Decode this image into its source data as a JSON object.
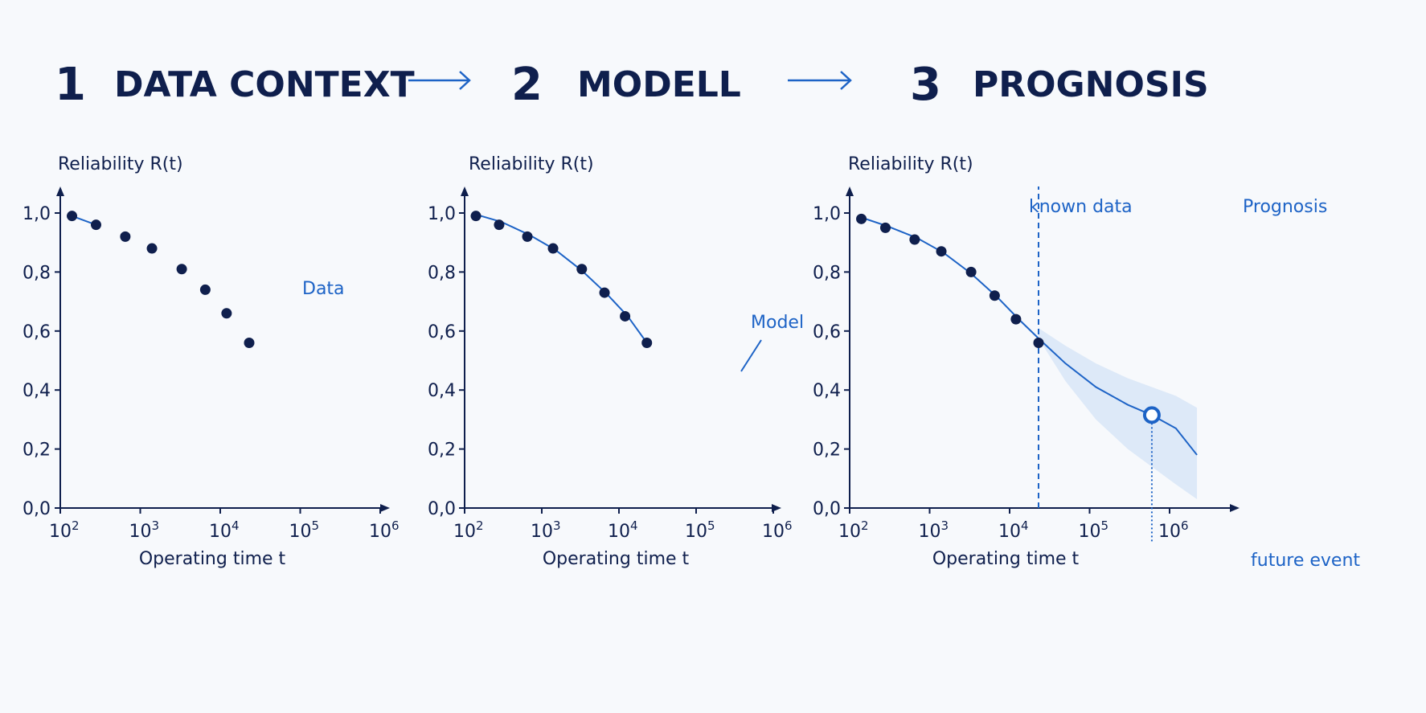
{
  "steps": [
    {
      "number": "1",
      "title": "DATA CONTEXT"
    },
    {
      "number": "2",
      "title": "MODELL"
    },
    {
      "number": "3",
      "title": "PROGNOSIS"
    }
  ],
  "colors": {
    "navy": "#0f1f4d",
    "accent_blue": "#1d63c6",
    "band_fill": "#d8e6f7",
    "background": "#f7f9fc"
  },
  "icons": {
    "step_arrow": "right-arrow-icon"
  },
  "chart_data": [
    {
      "type": "scatter",
      "title": "1 DATA CONTEXT",
      "ylabel": "Reliability R(t)",
      "xlabel": "Operating time t",
      "x_scale": "log",
      "xlim": [
        100,
        1000000
      ],
      "ylim": [
        0,
        1
      ],
      "y_ticks": [
        "0,0",
        "0,2",
        "0,4",
        "0,6",
        "0,8",
        "1,0"
      ],
      "x_ticks": [
        {
          "base": "10",
          "exp": "2"
        },
        {
          "base": "10",
          "exp": "3"
        },
        {
          "base": "10",
          "exp": "4"
        },
        {
          "base": "10",
          "exp": "5"
        },
        {
          "base": "10",
          "exp": "6"
        }
      ],
      "series": [
        {
          "name": "Data",
          "x": [
            140,
            280,
            650,
            1400,
            3300,
            6500,
            12000,
            23000
          ],
          "y": [
            0.99,
            0.96,
            0.92,
            0.88,
            0.81,
            0.74,
            0.66,
            0.56
          ]
        }
      ],
      "annotations": [
        {
          "text": "Data"
        }
      ]
    },
    {
      "type": "line",
      "title": "2 MODELL",
      "ylabel": "Reliability R(t)",
      "xlabel": "Operating time t",
      "x_scale": "log",
      "xlim": [
        100,
        1000000
      ],
      "ylim": [
        0,
        1
      ],
      "y_ticks": [
        "0,0",
        "0,2",
        "0,4",
        "0,6",
        "0,8",
        "1,0"
      ],
      "x_ticks": [
        {
          "base": "10",
          "exp": "2"
        },
        {
          "base": "10",
          "exp": "3"
        },
        {
          "base": "10",
          "exp": "4"
        },
        {
          "base": "10",
          "exp": "5"
        },
        {
          "base": "10",
          "exp": "6"
        }
      ],
      "series": [
        {
          "name": "Data",
          "x": [
            140,
            280,
            650,
            1400,
            3300,
            6500,
            12000,
            23000
          ],
          "y": [
            0.99,
            0.96,
            0.92,
            0.88,
            0.81,
            0.73,
            0.65,
            0.56
          ]
        },
        {
          "name": "Model",
          "x": [
            140,
            300,
            700,
            1500,
            3300,
            7000,
            13000,
            23000
          ],
          "y": [
            0.995,
            0.97,
            0.925,
            0.875,
            0.805,
            0.725,
            0.65,
            0.56
          ]
        }
      ],
      "annotations": [
        {
          "text": "Model"
        }
      ]
    },
    {
      "type": "line",
      "title": "3 PROGNOSIS",
      "ylabel": "Reliability R(t)",
      "xlabel": "Operating time t",
      "x_scale": "log",
      "xlim": [
        100,
        1000000
      ],
      "ylim": [
        0,
        1
      ],
      "y_ticks": [
        "0,0",
        "0,2",
        "0,4",
        "0,6",
        "0,8",
        "1,0"
      ],
      "x_ticks": [
        {
          "base": "10",
          "exp": "2"
        },
        {
          "base": "10",
          "exp": "3"
        },
        {
          "base": "10",
          "exp": "4"
        },
        {
          "base": "10",
          "exp": "5"
        },
        {
          "base": "10",
          "exp": "6"
        }
      ],
      "series": [
        {
          "name": "Data",
          "x": [
            140,
            280,
            650,
            1400,
            3300,
            6500,
            12000,
            23000
          ],
          "y": [
            0.98,
            0.95,
            0.91,
            0.87,
            0.8,
            0.72,
            0.64,
            0.56
          ]
        },
        {
          "name": "Model",
          "x": [
            140,
            300,
            700,
            1500,
            3300,
            7000,
            13000,
            23000,
            50000,
            120000,
            300000,
            600000,
            1200000,
            2200000
          ],
          "y": [
            0.985,
            0.955,
            0.915,
            0.865,
            0.795,
            0.715,
            0.64,
            0.575,
            0.49,
            0.41,
            0.35,
            0.315,
            0.27,
            0.18
          ]
        }
      ],
      "band": {
        "x": [
          23000,
          50000,
          120000,
          300000,
          600000,
          1200000,
          2200000
        ],
        "lower": [
          0.575,
          0.43,
          0.3,
          0.2,
          0.14,
          0.08,
          0.03
        ],
        "upper": [
          0.61,
          0.55,
          0.49,
          0.44,
          0.41,
          0.38,
          0.34
        ]
      },
      "split_x": 23000,
      "future_event": {
        "x": 600000,
        "y": 0.315
      },
      "annotations": [
        {
          "text": "known data"
        },
        {
          "text": "Prognosis"
        },
        {
          "text": "future event"
        }
      ]
    }
  ]
}
